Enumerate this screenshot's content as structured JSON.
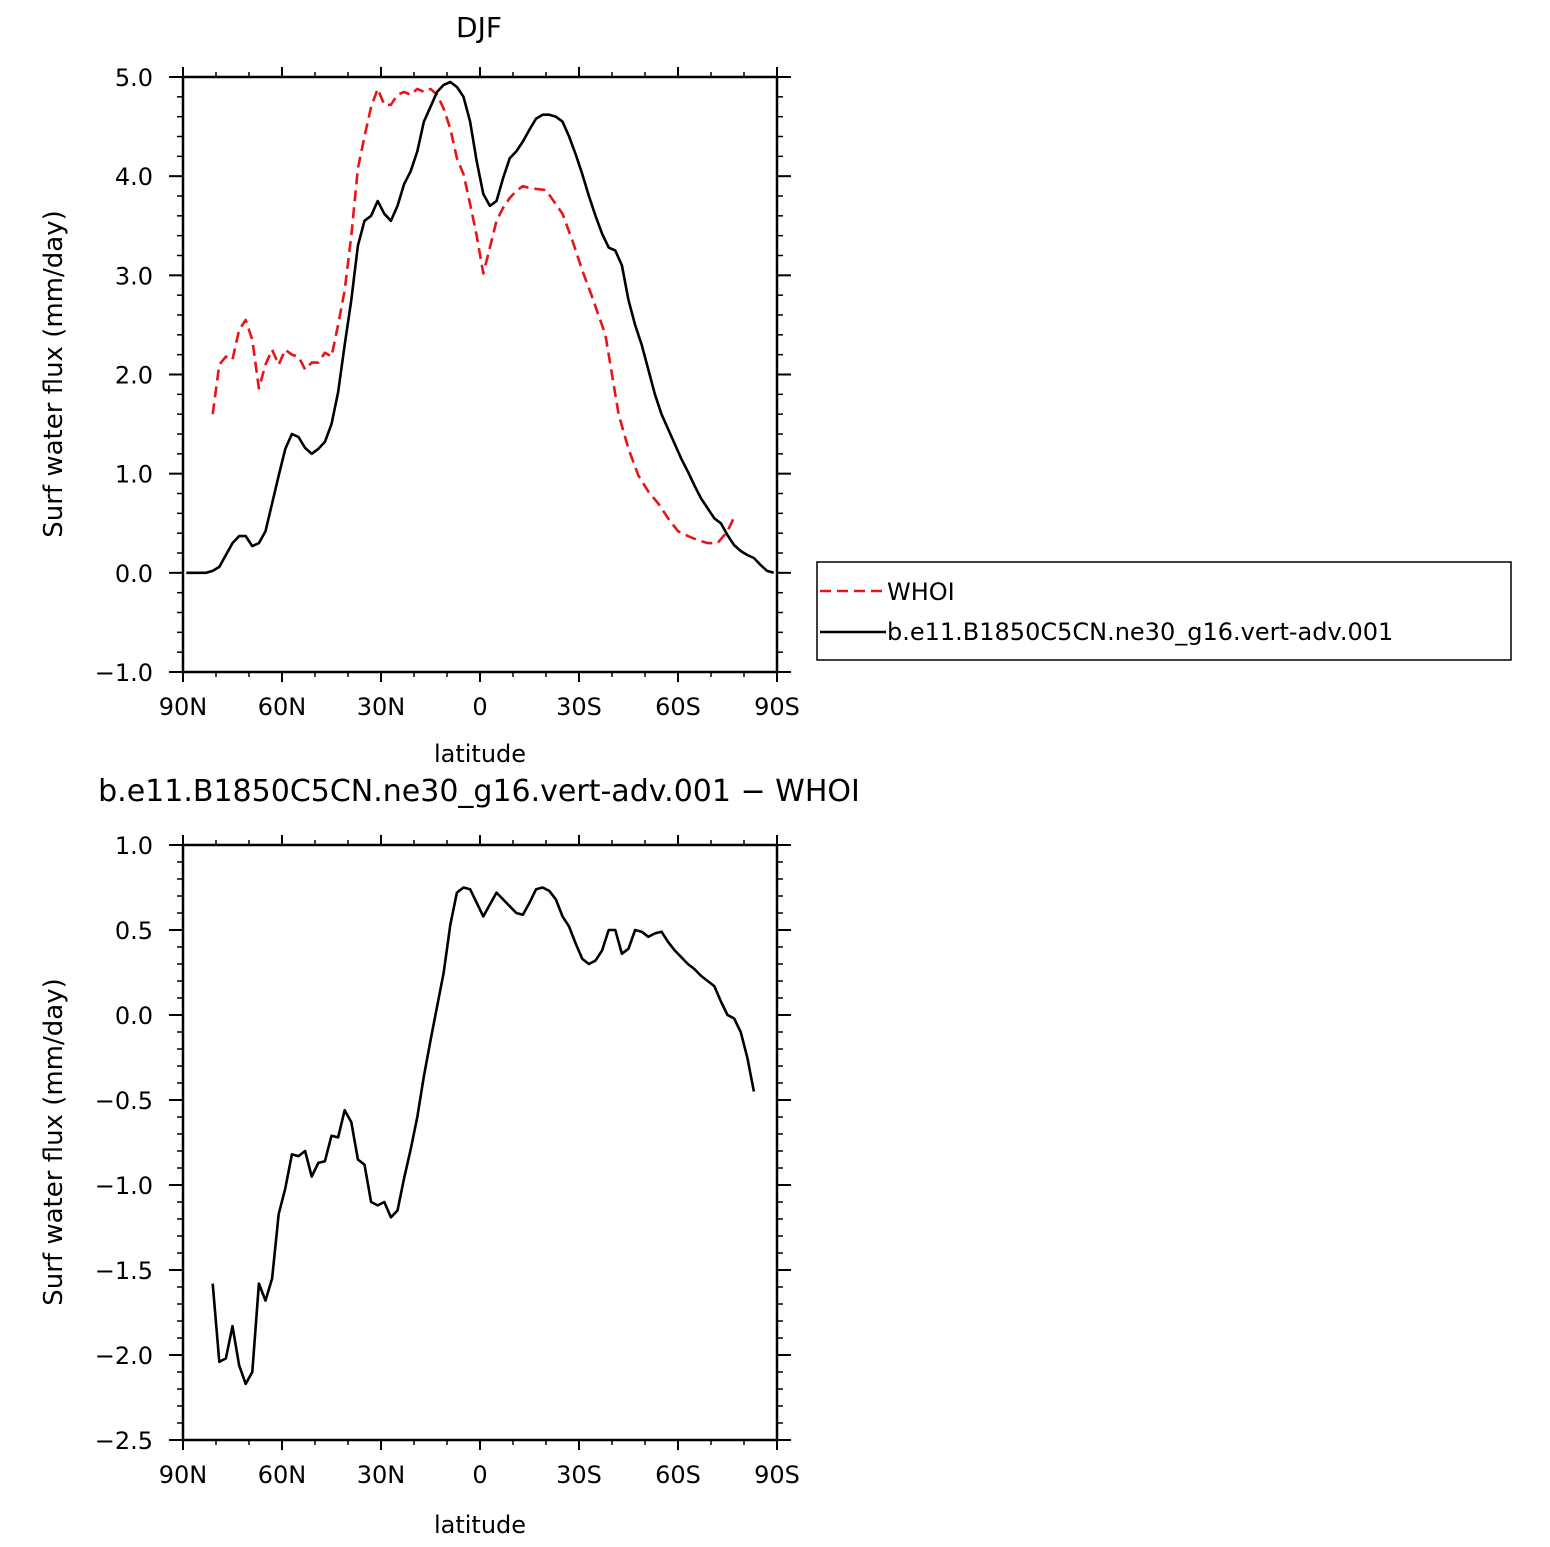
{
  "chart_data": [
    {
      "type": "line",
      "title": "DJF",
      "xlabel": "latitude",
      "ylabel": "Surf water flux (mm/day)",
      "xlim": [
        90,
        -90
      ],
      "ylim": [
        -1.0,
        5.0
      ],
      "xticks": [
        {
          "value": 90,
          "label": "90N"
        },
        {
          "value": 60,
          "label": "60N"
        },
        {
          "value": 30,
          "label": "30N"
        },
        {
          "value": 0,
          "label": "0"
        },
        {
          "value": -30,
          "label": "30S"
        },
        {
          "value": -60,
          "label": "60S"
        },
        {
          "value": -90,
          "label": "90S"
        }
      ],
      "yticks": [
        {
          "value": 5.0,
          "label": "5.0"
        },
        {
          "value": 4.0,
          "label": "4.0"
        },
        {
          "value": 3.0,
          "label": "3.0"
        },
        {
          "value": 2.0,
          "label": "2.0"
        },
        {
          "value": 1.0,
          "label": "1.0"
        },
        {
          "value": 0.0,
          "label": "0.0"
        },
        {
          "value": -1.0,
          "label": "−1.0"
        }
      ],
      "legend": {
        "placement": "right, outside plot"
      },
      "series": [
        {
          "name": "WHOI",
          "color": "#e8141a",
          "dash": "dashed",
          "points": [
            [
              81,
              1.6
            ],
            [
              79,
              2.1
            ],
            [
              77,
              2.18
            ],
            [
              75,
              2.15
            ],
            [
              73,
              2.45
            ],
            [
              71,
              2.55
            ],
            [
              69,
              2.35
            ],
            [
              67,
              1.86
            ],
            [
              65,
              2.1
            ],
            [
              63,
              2.25
            ],
            [
              61,
              2.1
            ],
            [
              59,
              2.25
            ],
            [
              57,
              2.2
            ],
            [
              55,
              2.18
            ],
            [
              53,
              2.05
            ],
            [
              51,
              2.12
            ],
            [
              49,
              2.12
            ],
            [
              47,
              2.22
            ],
            [
              45,
              2.18
            ],
            [
              43,
              2.5
            ],
            [
              41,
              2.85
            ],
            [
              39,
              3.4
            ],
            [
              37,
              4.08
            ],
            [
              35,
              4.4
            ],
            [
              33,
              4.7
            ],
            [
              31,
              4.88
            ],
            [
              29,
              4.72
            ],
            [
              27,
              4.72
            ],
            [
              25,
              4.82
            ],
            [
              23,
              4.85
            ],
            [
              21,
              4.82
            ],
            [
              19,
              4.88
            ],
            [
              17,
              4.85
            ],
            [
              15,
              4.88
            ],
            [
              13,
              4.82
            ],
            [
              11,
              4.68
            ],
            [
              9,
              4.48
            ],
            [
              7,
              4.18
            ],
            [
              5,
              4.02
            ],
            [
              3,
              3.72
            ],
            [
              1,
              3.4
            ],
            [
              -1,
              3.02
            ],
            [
              -3,
              3.28
            ],
            [
              -5,
              3.55
            ],
            [
              -7,
              3.68
            ],
            [
              -9,
              3.78
            ],
            [
              -11,
              3.85
            ],
            [
              -13,
              3.9
            ],
            [
              -15,
              3.88
            ],
            [
              -20,
              3.86
            ],
            [
              -25,
              3.62
            ],
            [
              -28,
              3.35
            ],
            [
              -31,
              3.05
            ],
            [
              -34,
              2.78
            ],
            [
              -38,
              2.4
            ],
            [
              -42,
              1.6
            ],
            [
              -45,
              1.25
            ],
            [
              -48,
              0.98
            ],
            [
              -51,
              0.82
            ],
            [
              -54,
              0.7
            ],
            [
              -57,
              0.55
            ],
            [
              -60,
              0.42
            ],
            [
              -63,
              0.37
            ],
            [
              -66,
              0.33
            ],
            [
              -69,
              0.3
            ],
            [
              -72,
              0.3
            ],
            [
              -75,
              0.42
            ],
            [
              -77,
              0.56
            ]
          ]
        },
        {
          "name": "b.e11.B1850C5CN.ne30_g16.vert-adv.001",
          "color": "#000000",
          "dash": "solid",
          "points": [
            [
              89,
              0.0
            ],
            [
              87,
              0.0
            ],
            [
              85,
              0.0
            ],
            [
              83,
              0.0
            ],
            [
              81,
              0.02
            ],
            [
              79,
              0.06
            ],
            [
              77,
              0.18
            ],
            [
              75,
              0.3
            ],
            [
              73,
              0.37
            ],
            [
              71,
              0.37
            ],
            [
              69,
              0.27
            ],
            [
              67,
              0.3
            ],
            [
              65,
              0.42
            ],
            [
              63,
              0.7
            ],
            [
              61,
              0.98
            ],
            [
              59,
              1.25
            ],
            [
              57,
              1.4
            ],
            [
              55,
              1.37
            ],
            [
              53,
              1.26
            ],
            [
              51,
              1.2
            ],
            [
              49,
              1.25
            ],
            [
              47,
              1.32
            ],
            [
              45,
              1.5
            ],
            [
              43,
              1.82
            ],
            [
              41,
              2.3
            ],
            [
              39,
              2.75
            ],
            [
              37,
              3.3
            ],
            [
              35,
              3.55
            ],
            [
              33,
              3.6
            ],
            [
              31,
              3.75
            ],
            [
              29,
              3.62
            ],
            [
              27,
              3.55
            ],
            [
              25,
              3.7
            ],
            [
              23,
              3.92
            ],
            [
              21,
              4.05
            ],
            [
              19,
              4.25
            ],
            [
              17,
              4.55
            ],
            [
              15,
              4.7
            ],
            [
              13,
              4.85
            ],
            [
              11,
              4.92
            ],
            [
              9,
              4.95
            ],
            [
              7,
              4.9
            ],
            [
              5,
              4.8
            ],
            [
              3,
              4.55
            ],
            [
              1,
              4.15
            ],
            [
              -1,
              3.82
            ],
            [
              -3,
              3.7
            ],
            [
              -5,
              3.75
            ],
            [
              -7,
              3.98
            ],
            [
              -9,
              4.18
            ],
            [
              -11,
              4.25
            ],
            [
              -13,
              4.35
            ],
            [
              -15,
              4.47
            ],
            [
              -17,
              4.58
            ],
            [
              -19,
              4.62
            ],
            [
              -21,
              4.62
            ],
            [
              -23,
              4.6
            ],
            [
              -25,
              4.55
            ],
            [
              -27,
              4.4
            ],
            [
              -29,
              4.22
            ],
            [
              -31,
              4.02
            ],
            [
              -33,
              3.8
            ],
            [
              -35,
              3.6
            ],
            [
              -37,
              3.42
            ],
            [
              -39,
              3.28
            ],
            [
              -41,
              3.25
            ],
            [
              -43,
              3.1
            ],
            [
              -45,
              2.75
            ],
            [
              -47,
              2.5
            ],
            [
              -49,
              2.3
            ],
            [
              -51,
              2.05
            ],
            [
              -53,
              1.8
            ],
            [
              -55,
              1.6
            ],
            [
              -57,
              1.45
            ],
            [
              -59,
              1.3
            ],
            [
              -61,
              1.15
            ],
            [
              -63,
              1.02
            ],
            [
              -65,
              0.88
            ],
            [
              -67,
              0.75
            ],
            [
              -69,
              0.65
            ],
            [
              -71,
              0.55
            ],
            [
              -73,
              0.5
            ],
            [
              -75,
              0.38
            ],
            [
              -77,
              0.28
            ],
            [
              -79,
              0.22
            ],
            [
              -81,
              0.18
            ],
            [
              -83,
              0.15
            ],
            [
              -85,
              0.08
            ],
            [
              -87,
              0.02
            ],
            [
              -89,
              0.0
            ]
          ]
        }
      ]
    },
    {
      "type": "line",
      "title": "b.e11.B1850C5CN.ne30_g16.vert-adv.001 − WHOI",
      "xlabel": "latitude",
      "ylabel": "Surf water flux (mm/day)",
      "xlim": [
        90,
        -90
      ],
      "ylim": [
        -2.5,
        1.0
      ],
      "xticks": [
        {
          "value": 90,
          "label": "90N"
        },
        {
          "value": 60,
          "label": "60N"
        },
        {
          "value": 30,
          "label": "30N"
        },
        {
          "value": 0,
          "label": "0"
        },
        {
          "value": -30,
          "label": "30S"
        },
        {
          "value": -60,
          "label": "60S"
        },
        {
          "value": -90,
          "label": "90S"
        }
      ],
      "yticks": [
        {
          "value": 1.0,
          "label": "1.0"
        },
        {
          "value": 0.5,
          "label": "0.5"
        },
        {
          "value": 0.0,
          "label": "0.0"
        },
        {
          "value": -0.5,
          "label": "−0.5"
        },
        {
          "value": -1.0,
          "label": "−1.0"
        },
        {
          "value": -1.5,
          "label": "−1.5"
        },
        {
          "value": -2.0,
          "label": "−2.0"
        },
        {
          "value": -2.5,
          "label": "−2.5"
        }
      ],
      "series": [
        {
          "color": "#000000",
          "dash": "solid",
          "points": [
            [
              81,
              -1.58
            ],
            [
              79,
              -2.04
            ],
            [
              77,
              -2.02
            ],
            [
              75,
              -1.83
            ],
            [
              73,
              -2.06
            ],
            [
              71,
              -2.17
            ],
            [
              69,
              -2.1
            ],
            [
              67,
              -1.58
            ],
            [
              65,
              -1.68
            ],
            [
              63,
              -1.55
            ],
            [
              61,
              -1.17
            ],
            [
              59,
              -1.02
            ],
            [
              57,
              -0.82
            ],
            [
              55,
              -0.83
            ],
            [
              53,
              -0.8
            ],
            [
              51,
              -0.95
            ],
            [
              49,
              -0.87
            ],
            [
              47,
              -0.86
            ],
            [
              45,
              -0.71
            ],
            [
              43,
              -0.72
            ],
            [
              41,
              -0.56
            ],
            [
              39,
              -0.63
            ],
            [
              37,
              -0.85
            ],
            [
              35,
              -0.88
            ],
            [
              33,
              -1.1
            ],
            [
              31,
              -1.12
            ],
            [
              29,
              -1.1
            ],
            [
              27,
              -1.19
            ],
            [
              25,
              -1.15
            ],
            [
              23,
              -0.96
            ],
            [
              21,
              -0.79
            ],
            [
              19,
              -0.6
            ],
            [
              17,
              -0.36
            ],
            [
              15,
              -0.15
            ],
            [
              13,
              0.05
            ],
            [
              11,
              0.25
            ],
            [
              9,
              0.53
            ],
            [
              7,
              0.72
            ],
            [
              5,
              0.75
            ],
            [
              3,
              0.74
            ],
            [
              1,
              0.66
            ],
            [
              -1,
              0.58
            ],
            [
              -3,
              0.65
            ],
            [
              -5,
              0.72
            ],
            [
              -7,
              0.68
            ],
            [
              -9,
              0.64
            ],
            [
              -11,
              0.6
            ],
            [
              -13,
              0.59
            ],
            [
              -15,
              0.66
            ],
            [
              -17,
              0.74
            ],
            [
              -19,
              0.75
            ],
            [
              -21,
              0.73
            ],
            [
              -23,
              0.68
            ],
            [
              -25,
              0.58
            ],
            [
              -27,
              0.52
            ],
            [
              -29,
              0.42
            ],
            [
              -31,
              0.33
            ],
            [
              -33,
              0.3
            ],
            [
              -35,
              0.32
            ],
            [
              -37,
              0.38
            ],
            [
              -39,
              0.5
            ],
            [
              -41,
              0.5
            ],
            [
              -43,
              0.36
            ],
            [
              -45,
              0.39
            ],
            [
              -47,
              0.5
            ],
            [
              -49,
              0.49
            ],
            [
              -51,
              0.46
            ],
            [
              -53,
              0.48
            ],
            [
              -55,
              0.49
            ],
            [
              -57,
              0.43
            ],
            [
              -59,
              0.38
            ],
            [
              -61,
              0.34
            ],
            [
              -63,
              0.3
            ],
            [
              -65,
              0.27
            ],
            [
              -67,
              0.23
            ],
            [
              -69,
              0.2
            ],
            [
              -71,
              0.17
            ],
            [
              -73,
              0.08
            ],
            [
              -75,
              0.0
            ],
            [
              -77,
              -0.02
            ],
            [
              -79,
              -0.1
            ],
            [
              -81,
              -0.25
            ],
            [
              -83,
              -0.45
            ]
          ]
        }
      ]
    }
  ]
}
